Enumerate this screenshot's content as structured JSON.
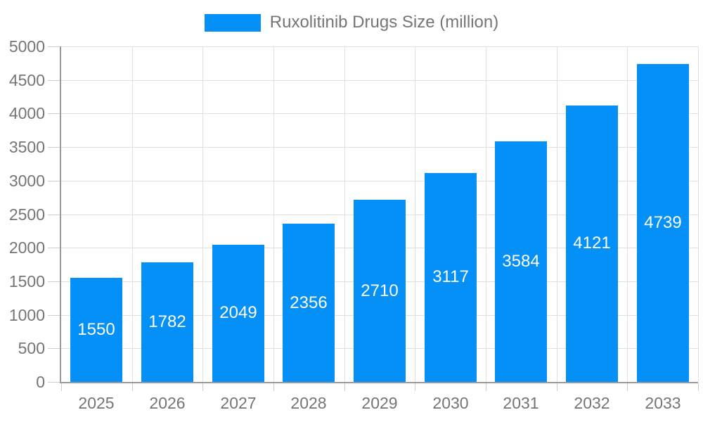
{
  "chart_data": {
    "type": "bar",
    "title": "Ruxolitinib Drugs Size (million)",
    "categories": [
      "2025",
      "2026",
      "2027",
      "2028",
      "2029",
      "2030",
      "2031",
      "2032",
      "2033"
    ],
    "values": [
      1550,
      1782,
      2049,
      2356,
      2710,
      3117,
      3584,
      4121,
      4739
    ],
    "xlabel": "",
    "ylabel": "",
    "ylim": [
      0,
      5000
    ],
    "ytick_step": 500,
    "grid": true,
    "legend_position": "top-center",
    "colors": {
      "bar": "#0590f7",
      "value_label": "#ffffff",
      "axis_text": "#757575",
      "gridline": "#e0e0e0",
      "tick": "#cccccc",
      "axis_line": "#9a9a9a",
      "background": "#ffffff"
    }
  }
}
